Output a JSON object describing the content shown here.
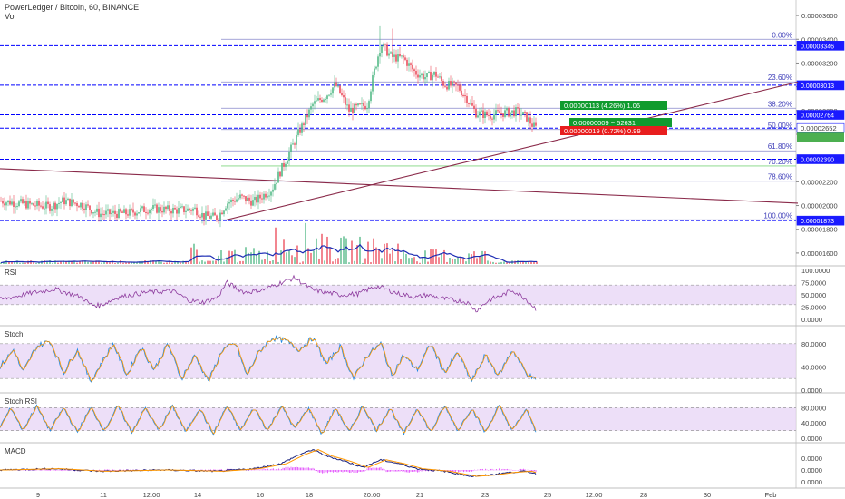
{
  "header": {
    "symbol_title": "PowerLedger / Bitcoin, 60, BINANCE",
    "volume_label": "Vol"
  },
  "panes": {
    "rsi": "RSI",
    "stoch": "Stoch",
    "stoch_rsi": "Stoch RSI",
    "macd": "MACD"
  },
  "colors": {
    "up_candle": "#53b987",
    "down_candle": "#eb4d5c",
    "level_line": "#0000ff",
    "trend_line": "#8a2a4a",
    "fib_line": "#8888cc",
    "fib_text": "#3c3cb8",
    "band_fill": "#e6d2f5",
    "ma_blue": "#1c2cb4",
    "orange": "#ff9800",
    "magenta": "#e040fb",
    "green_box": "#109b2e",
    "red_box": "#e81e1e"
  },
  "chart_data": [
    {
      "type": "candlestick",
      "title": "PowerLedger / Bitcoin, 60, BINANCE",
      "x_ticks": [
        "9",
        "11",
        "12:00",
        "14",
        "16",
        "18",
        "20:00",
        "21",
        "23",
        "25",
        "12:00",
        "28",
        "30",
        "Feb"
      ],
      "y_ticks": [
        "0.00003600",
        "0.00003400",
        "0.00003200",
        "0.00003000",
        "0.00002800",
        "0.00002600",
        "0.00002400",
        "0.00002200",
        "0.00002000",
        "0.00001800",
        "0.00001600"
      ],
      "ylim": [
        1.5e-05,
        3.7e-05
      ],
      "price_path": [
        [
          0,
          2.04e-05
        ],
        [
          30,
          2.01e-05
        ],
        [
          55,
          1.99e-05
        ],
        [
          70,
          2.04e-05
        ],
        [
          90,
          2.01e-05
        ],
        [
          110,
          1.93e-05
        ],
        [
          140,
          1.935e-05
        ],
        [
          165,
          1.975e-05
        ],
        [
          195,
          1.96e-05
        ],
        [
          215,
          1.97e-05
        ],
        [
          225,
          1.91e-05
        ],
        [
          240,
          1.9e-05
        ],
        [
          250,
          2.02e-05
        ],
        [
          265,
          2.07e-05
        ],
        [
          280,
          2.03e-05
        ],
        [
          300,
          2.14e-05
        ],
        [
          315,
          2.38e-05
        ],
        [
          330,
          2.62e-05
        ],
        [
          345,
          2.85e-05
        ],
        [
          360,
          2.93e-05
        ],
        [
          370,
          3.02e-05
        ],
        [
          385,
          2.8e-05
        ],
        [
          405,
          2.85e-05
        ],
        [
          412,
          3.1e-05
        ],
        [
          420,
          3.36e-05
        ],
        [
          432,
          3.25e-05
        ],
        [
          445,
          3.24e-05
        ],
        [
          458,
          3.12e-05
        ],
        [
          470,
          3.08e-05
        ],
        [
          480,
          3.11e-05
        ],
        [
          490,
          3.02e-05
        ],
        [
          505,
          3e-05
        ],
        [
          515,
          2.9e-05
        ],
        [
          525,
          2.78e-05
        ],
        [
          540,
          2.76e-05
        ],
        [
          555,
          2.78e-05
        ],
        [
          570,
          2.79e-05
        ],
        [
          580,
          2.75e-05
        ],
        [
          590,
          2.652e-05
        ]
      ],
      "horizontal_levels": [
        "0.00003346",
        "0.00003013",
        "0.00002764",
        "0.00002652",
        "0.00002390",
        "0.00001873"
      ],
      "fibonacci": {
        "high": 3.4e-05,
        "low": 1.88e-05,
        "levels": [
          {
            "ratio": 0.0,
            "label": "0.00%"
          },
          {
            "ratio": 0.236,
            "label": "23.60%"
          },
          {
            "ratio": 0.382,
            "label": "38.20%"
          },
          {
            "ratio": 0.5,
            "label": "50.00%"
          },
          {
            "ratio": 0.618,
            "label": "61.80%"
          },
          {
            "ratio": 0.702,
            "label": "70.20%"
          },
          {
            "ratio": 0.786,
            "label": "78.60%"
          },
          {
            "ratio": 1.0,
            "label": "100.00%"
          }
        ]
      },
      "trend_lines": [
        {
          "from": [
            0,
            2.31e-05
          ],
          "to": [
            880,
            2.02e-05
          ]
        },
        {
          "from": [
            250,
            1.88e-05
          ],
          "to": [
            880,
            3.04e-05
          ]
        }
      ],
      "annotations": {
        "gain_box": "0.00000113 (4.26%) 1.06",
        "mid_box": "0.00000009 ~ 52631",
        "loss_box": "0.00000019 (0.72%) 0.99",
        "side_tag": "0.00002652"
      }
    },
    {
      "type": "bar",
      "title": "Vol",
      "note": "volume bars with blue moving average"
    },
    {
      "type": "line",
      "title": "RSI",
      "y_ticks": [
        "100.0000",
        "75.0000",
        "50.0000",
        "25.0000",
        "0.0000"
      ],
      "ylim": [
        0,
        100
      ],
      "band": [
        30,
        70
      ],
      "series_path": [
        [
          0,
          40
        ],
        [
          30,
          52
        ],
        [
          60,
          62
        ],
        [
          90,
          45
        ],
        [
          100,
          30
        ],
        [
          110,
          28
        ],
        [
          130,
          45
        ],
        [
          160,
          55
        ],
        [
          190,
          58
        ],
        [
          210,
          38
        ],
        [
          225,
          35
        ],
        [
          240,
          45
        ],
        [
          250,
          75
        ],
        [
          270,
          55
        ],
        [
          290,
          60
        ],
        [
          310,
          75
        ],
        [
          325,
          85
        ],
        [
          345,
          60
        ],
        [
          360,
          55
        ],
        [
          375,
          50
        ],
        [
          395,
          52
        ],
        [
          415,
          68
        ],
        [
          425,
          62
        ],
        [
          440,
          52
        ],
        [
          460,
          45
        ],
        [
          470,
          50
        ],
        [
          490,
          42
        ],
        [
          505,
          38
        ],
        [
          515,
          35
        ],
        [
          525,
          18
        ],
        [
          540,
          40
        ],
        [
          555,
          50
        ],
        [
          565,
          60
        ],
        [
          580,
          42
        ],
        [
          592,
          20
        ]
      ]
    },
    {
      "type": "line",
      "title": "Stoch",
      "y_ticks": [
        "80.0000",
        "40.0000",
        "0.0000"
      ],
      "ylim": [
        0,
        100
      ],
      "band": [
        20,
        80
      ],
      "series_path": [
        [
          0,
          40
        ],
        [
          15,
          70
        ],
        [
          25,
          30
        ],
        [
          40,
          75
        ],
        [
          55,
          85
        ],
        [
          70,
          30
        ],
        [
          85,
          70
        ],
        [
          100,
          15
        ],
        [
          115,
          55
        ],
        [
          125,
          80
        ],
        [
          140,
          25
        ],
        [
          155,
          75
        ],
        [
          170,
          35
        ],
        [
          185,
          80
        ],
        [
          200,
          20
        ],
        [
          215,
          60
        ],
        [
          230,
          15
        ],
        [
          245,
          70
        ],
        [
          260,
          80
        ],
        [
          272,
          25
        ],
        [
          285,
          65
        ],
        [
          300,
          90
        ],
        [
          315,
          85
        ],
        [
          330,
          70
        ],
        [
          345,
          90
        ],
        [
          360,
          45
        ],
        [
          375,
          75
        ],
        [
          390,
          20
        ],
        [
          405,
          60
        ],
        [
          420,
          80
        ],
        [
          432,
          25
        ],
        [
          445,
          60
        ],
        [
          460,
          35
        ],
        [
          475,
          80
        ],
        [
          490,
          30
        ],
        [
          505,
          65
        ],
        [
          520,
          15
        ],
        [
          535,
          60
        ],
        [
          550,
          25
        ],
        [
          565,
          70
        ],
        [
          580,
          30
        ],
        [
          592,
          15
        ]
      ]
    },
    {
      "type": "line",
      "title": "Stoch RSI",
      "y_ticks": [
        "80.0000",
        "40.0000",
        "0.0000"
      ],
      "ylim": [
        0,
        100
      ],
      "band": [
        20,
        80
      ],
      "series_path": [
        [
          0,
          30
        ],
        [
          12,
          80
        ],
        [
          25,
          20
        ],
        [
          40,
          85
        ],
        [
          55,
          20
        ],
        [
          70,
          80
        ],
        [
          85,
          15
        ],
        [
          100,
          80
        ],
        [
          115,
          20
        ],
        [
          130,
          85
        ],
        [
          145,
          15
        ],
        [
          160,
          80
        ],
        [
          175,
          20
        ],
        [
          190,
          85
        ],
        [
          205,
          15
        ],
        [
          220,
          80
        ],
        [
          235,
          10
        ],
        [
          250,
          85
        ],
        [
          265,
          20
        ],
        [
          280,
          80
        ],
        [
          295,
          20
        ],
        [
          310,
          85
        ],
        [
          325,
          25
        ],
        [
          340,
          80
        ],
        [
          355,
          10
        ],
        [
          370,
          80
        ],
        [
          385,
          15
        ],
        [
          400,
          85
        ],
        [
          415,
          20
        ],
        [
          430,
          80
        ],
        [
          445,
          10
        ],
        [
          460,
          80
        ],
        [
          475,
          15
        ],
        [
          490,
          85
        ],
        [
          505,
          20
        ],
        [
          520,
          80
        ],
        [
          535,
          15
        ],
        [
          550,
          85
        ],
        [
          565,
          20
        ],
        [
          580,
          75
        ],
        [
          592,
          15
        ]
      ]
    },
    {
      "type": "line",
      "title": "MACD",
      "y_ticks": [
        "0.0000",
        "0.0000",
        "0.0000",
        "-0.0000"
      ],
      "series_path": [
        [
          0,
          0
        ],
        [
          60,
          1
        ],
        [
          110,
          -1
        ],
        [
          180,
          0
        ],
        [
          240,
          -1
        ],
        [
          280,
          1
        ],
        [
          310,
          5
        ],
        [
          330,
          12
        ],
        [
          345,
          16
        ],
        [
          360,
          11
        ],
        [
          380,
          7
        ],
        [
          400,
          2
        ],
        [
          420,
          8
        ],
        [
          440,
          5
        ],
        [
          460,
          1
        ],
        [
          490,
          -1
        ],
        [
          520,
          -5
        ],
        [
          540,
          -4
        ],
        [
          560,
          -2
        ],
        [
          580,
          -1
        ],
        [
          592,
          -3
        ]
      ]
    }
  ]
}
